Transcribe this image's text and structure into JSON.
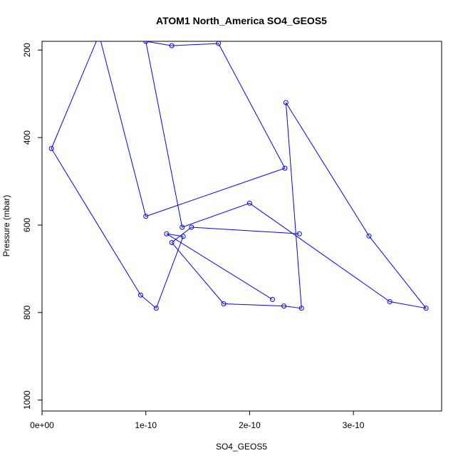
{
  "chart_data": {
    "type": "line",
    "title": "ATOM1 North_America SO4_GEOS5",
    "xlabel": "SO4_GEOS5",
    "ylabel": "Pressure (mbar)",
    "xlim": [
      0,
      3.85e-10
    ],
    "ylim": [
      1025,
      180
    ],
    "y_reversed": true,
    "grid": false,
    "markers": "open-circle",
    "color": "#0000ff",
    "x_ticks": [
      {
        "value": 0,
        "label": "0e+00"
      },
      {
        "value": 1e-10,
        "label": "1e-10"
      },
      {
        "value": 2e-10,
        "label": "2e-10"
      },
      {
        "value": 3e-10,
        "label": "3e-10"
      }
    ],
    "y_ticks": [
      {
        "value": 200,
        "label": "200"
      },
      {
        "value": 400,
        "label": "400"
      },
      {
        "value": 600,
        "label": "600"
      },
      {
        "value": 800,
        "label": "800"
      },
      {
        "value": 1000,
        "label": "1000"
      }
    ],
    "series": [
      {
        "x": [
          2.22e-10,
          1.2e-10,
          1.36e-10,
          1.1e-10,
          9.5e-11,
          9e-12,
          5.5e-11,
          1e-10,
          2.34e-10,
          1.7e-10,
          1.25e-10,
          1e-10,
          1.35e-10,
          2e-10,
          3.35e-10,
          3.7e-10,
          3.15e-10,
          2.35e-10,
          2.5e-10,
          2.33e-10,
          1.75e-10,
          1.25e-10,
          1.44e-10,
          2.48e-10
        ],
        "y": [
          770,
          620,
          626,
          790,
          760,
          425,
          165,
          580,
          470,
          185,
          190,
          180,
          605,
          550,
          775,
          790,
          625,
          320,
          790,
          785,
          780,
          640,
          605,
          620
        ]
      }
    ]
  }
}
